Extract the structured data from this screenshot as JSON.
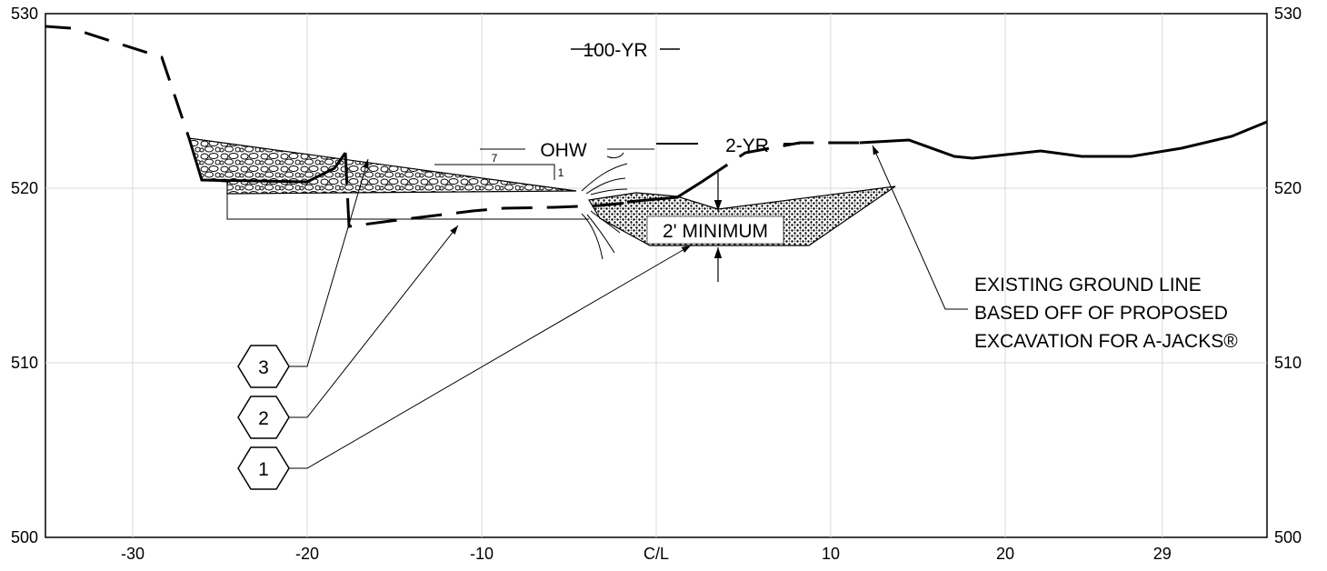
{
  "chart_data": {
    "type": "diagram",
    "x_ticks": [
      {
        "v": -30,
        "label": "-30"
      },
      {
        "v": -20,
        "label": "-20"
      },
      {
        "v": -10,
        "label": "-10"
      },
      {
        "v": 0,
        "label": "C/L"
      },
      {
        "v": 10,
        "label": "10"
      },
      {
        "v": 20,
        "label": "20"
      },
      {
        "v": 29,
        "label": "29"
      }
    ],
    "y_ticks": [
      500,
      510,
      520,
      530
    ],
    "xlim": [
      -35,
      35
    ],
    "ylim": [
      500,
      530
    ],
    "grid": true,
    "water_levels": [
      {
        "label": "100-YR",
        "elevation": 528.2
      },
      {
        "label": "OHW",
        "elevation": 522.3
      },
      {
        "label": "2-YR",
        "elevation": 522.3
      }
    ],
    "slope": {
      "run": "7",
      "rise": "1"
    },
    "dimension_label": "2' MINIMUM",
    "callouts": [
      "3",
      "2",
      "1"
    ],
    "note": [
      "EXISTING GROUND LINE",
      "BASED OFF OF PROPOSED",
      "EXCAVATION FOR A-JACKS®"
    ]
  }
}
